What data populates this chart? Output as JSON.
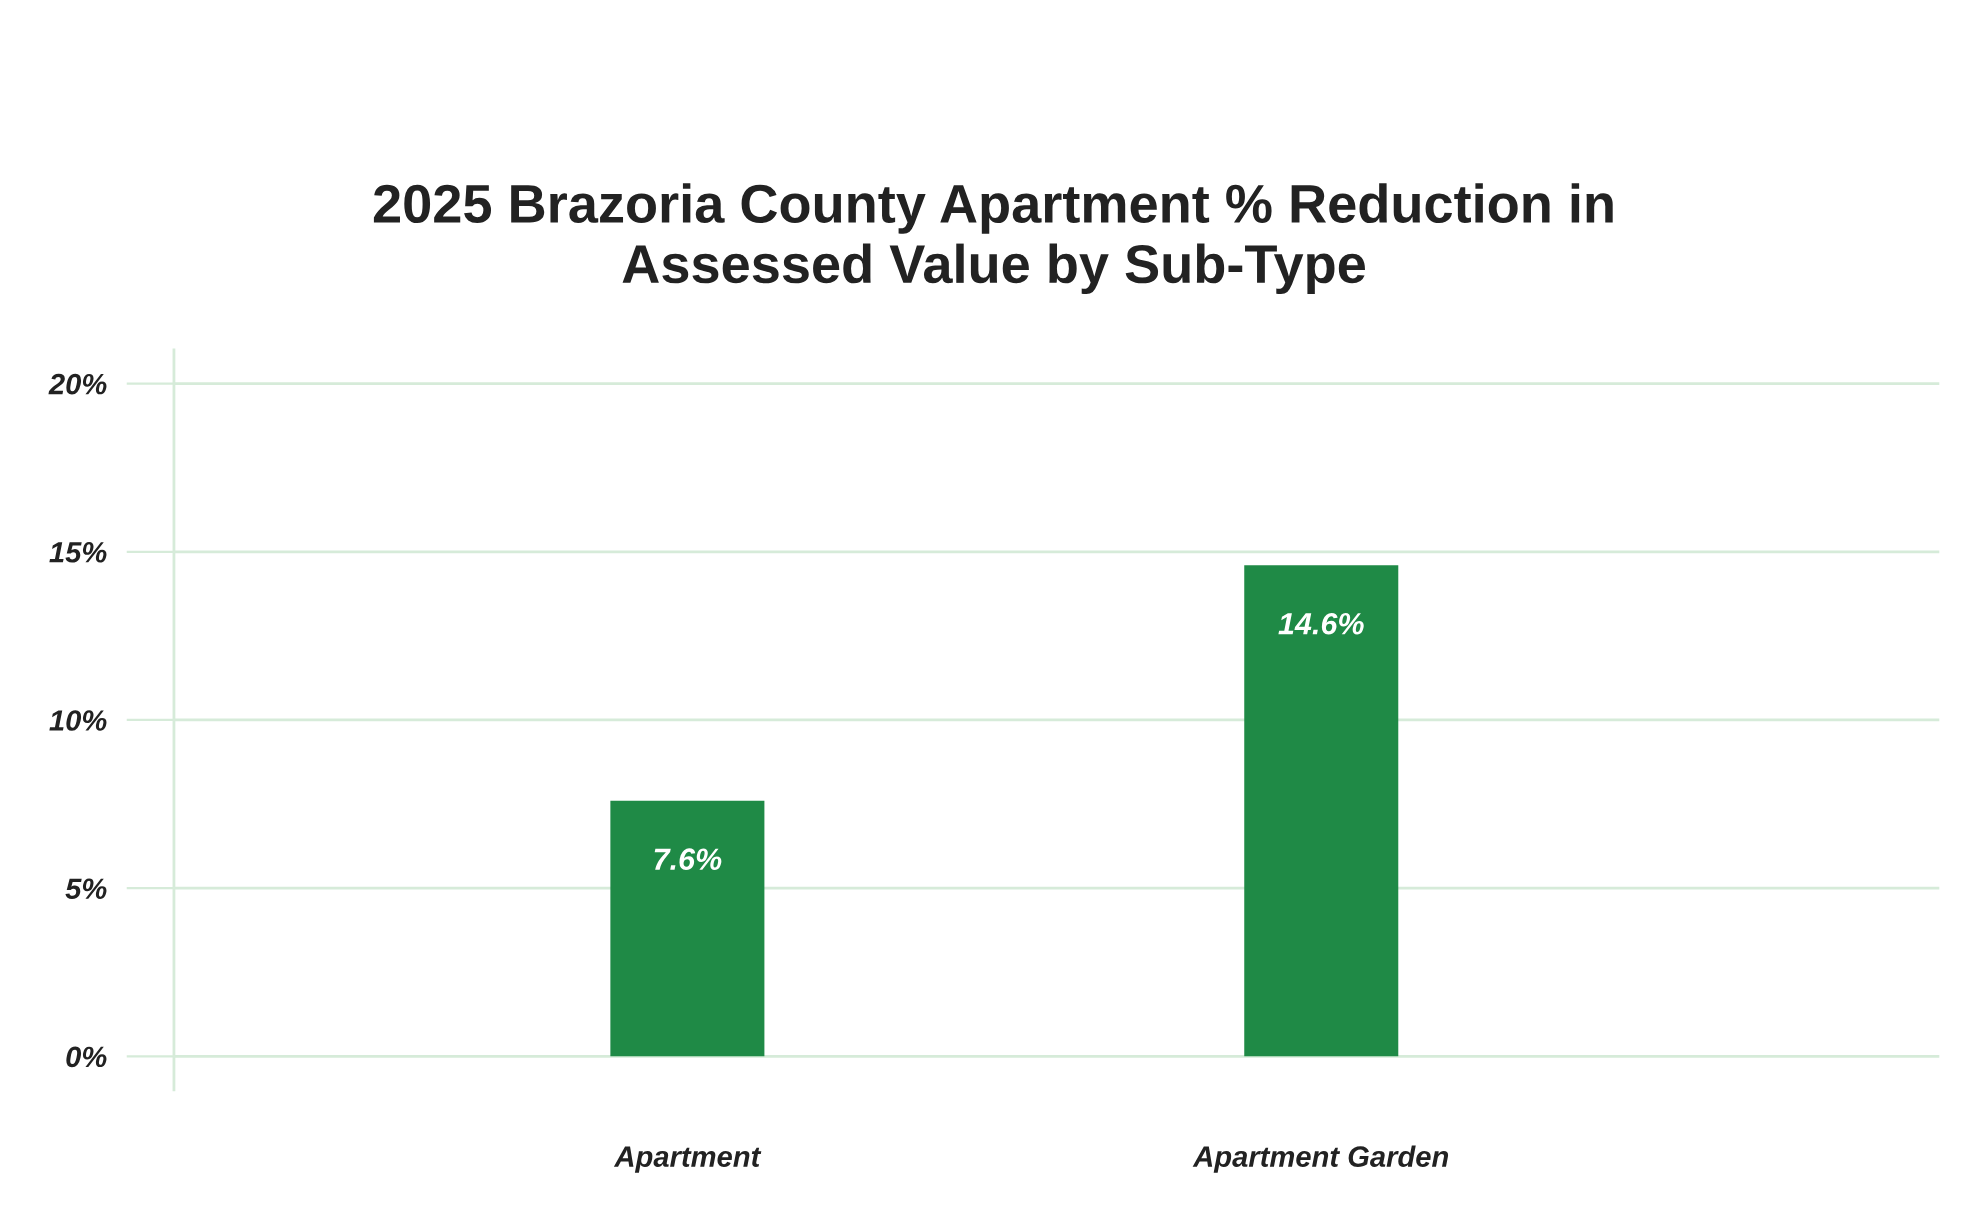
{
  "chart_data": {
    "type": "bar",
    "title": "2025 Brazoria County Apartment % Reduction in\nAssessed Value by Sub-Type",
    "categories": [
      "Apartment",
      "Apartment Garden"
    ],
    "values": [
      7.6,
      14.6
    ],
    "color": "#1f8a46",
    "value_labels": [
      "7.6%",
      "14.6%"
    ],
    "ylim": [
      -1,
      21
    ],
    "yticks": [
      {
        "value": 0,
        "label": "0%"
      },
      {
        "value": 5,
        "label": "5%"
      },
      {
        "value": 10,
        "label": "10%"
      },
      {
        "value": 15,
        "label": "15%"
      },
      {
        "value": 20,
        "label": "20%"
      }
    ],
    "grid": "y"
  }
}
